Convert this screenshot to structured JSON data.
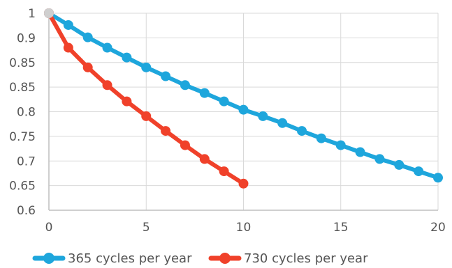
{
  "chart_data": {
    "type": "line",
    "title": "",
    "xlabel": "",
    "ylabel": "",
    "xlim": [
      0,
      20
    ],
    "ylim": [
      0.6,
      1.0
    ],
    "grid": true,
    "legend_position": "bottom-left",
    "x_ticks": [
      "0",
      "5",
      "10",
      "15",
      "20"
    ],
    "y_ticks": [
      "0.6",
      "0.65",
      "0.7",
      "0.75",
      "0.8",
      "0.85",
      "0.85",
      "0.9",
      "1"
    ],
    "series": [
      {
        "name": "365 cycles per year",
        "color": "#1ea6dc",
        "x": [
          0,
          1,
          2,
          3,
          4,
          5,
          6,
          7,
          8,
          9,
          10,
          11,
          12,
          13,
          14,
          15,
          16,
          17,
          18,
          19,
          20
        ],
        "y": [
          1.0,
          0.976,
          0.951,
          0.93,
          0.91,
          0.89,
          0.872,
          0.854,
          0.838,
          0.821,
          0.804,
          0.791,
          0.777,
          0.761,
          0.746,
          0.732,
          0.718,
          0.704,
          0.692,
          0.679,
          0.666
        ]
      },
      {
        "name": "730 cycles per year",
        "color": "#f0412a",
        "x": [
          0,
          1,
          2,
          3,
          4,
          5,
          6,
          7,
          8,
          9,
          10
        ],
        "y": [
          1.0,
          0.93,
          0.89,
          0.854,
          0.821,
          0.791,
          0.761,
          0.732,
          0.704,
          0.679,
          0.654
        ]
      }
    ],
    "first_point_color": "#cfcfcf"
  }
}
